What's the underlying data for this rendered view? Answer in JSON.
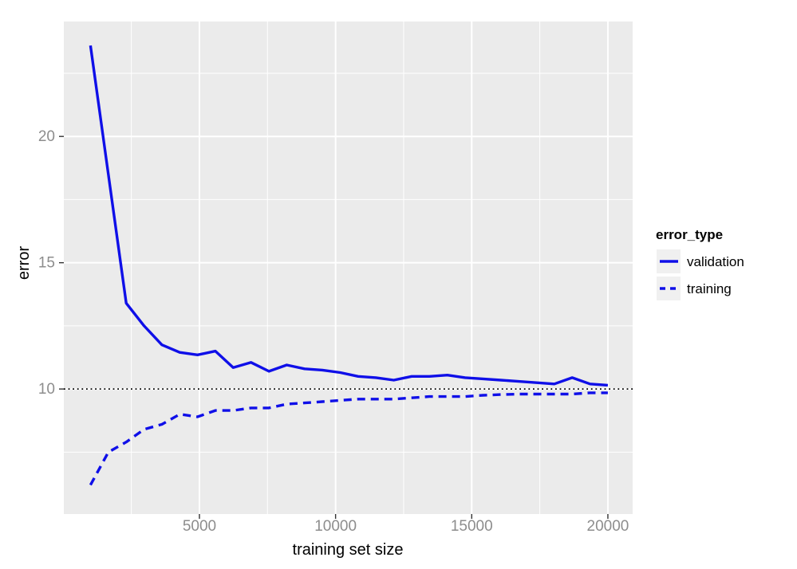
{
  "figure": {
    "background": "#ffffff",
    "panel_background": "#ebebeb",
    "grid_color": "#ffffff",
    "tick_mark_color": "#333333",
    "tick_label_color": "#8d8d8d",
    "axis_title_color": "#000000",
    "series_color": "#0f0fe8",
    "reference_line_color": "#000000",
    "legend_key_background": "#f0f0f0"
  },
  "chart_data": {
    "type": "line",
    "title": "",
    "xlabel": "training set size",
    "ylabel": "error",
    "legend_title": "error_type",
    "legend_position": "right",
    "grid": true,
    "xlim": [
      20,
      20910
    ],
    "ylim": [
      5.05,
      24.55
    ],
    "x_ticks": [
      5000,
      10000,
      15000,
      20000
    ],
    "x_minor_ticks": [
      2500,
      7500,
      12500,
      17500
    ],
    "y_ticks": [
      10,
      15,
      20
    ],
    "y_minor_ticks": [
      7.5,
      12.5,
      17.5,
      22.5
    ],
    "reference_line_y": 10,
    "x": [
      1000,
      1655,
      2310,
      2966,
      3621,
      4276,
      4931,
      5586,
      6241,
      6897,
      7552,
      8207,
      8862,
      9517,
      10172,
      10828,
      11483,
      12138,
      12793,
      13448,
      14103,
      14759,
      15414,
      16069,
      16724,
      17379,
      18034,
      18690,
      19345,
      20000
    ],
    "series": [
      {
        "name": "validation",
        "style": "solid",
        "values": [
          23.6,
          18.5,
          13.4,
          12.5,
          11.75,
          11.45,
          11.35,
          11.5,
          10.85,
          11.05,
          10.7,
          10.95,
          10.8,
          10.75,
          10.65,
          10.5,
          10.45,
          10.35,
          10.5,
          10.5,
          10.55,
          10.45,
          10.4,
          10.35,
          10.3,
          10.25,
          10.2,
          10.45,
          10.2,
          10.15
        ]
      },
      {
        "name": "training",
        "style": "dashed",
        "values": [
          6.2,
          7.5,
          7.9,
          8.4,
          8.6,
          9.0,
          8.9,
          9.15,
          9.15,
          9.25,
          9.25,
          9.4,
          9.45,
          9.5,
          9.55,
          9.6,
          9.6,
          9.6,
          9.65,
          9.7,
          9.7,
          9.7,
          9.75,
          9.78,
          9.8,
          9.8,
          9.8,
          9.8,
          9.85,
          9.85
        ]
      }
    ]
  }
}
